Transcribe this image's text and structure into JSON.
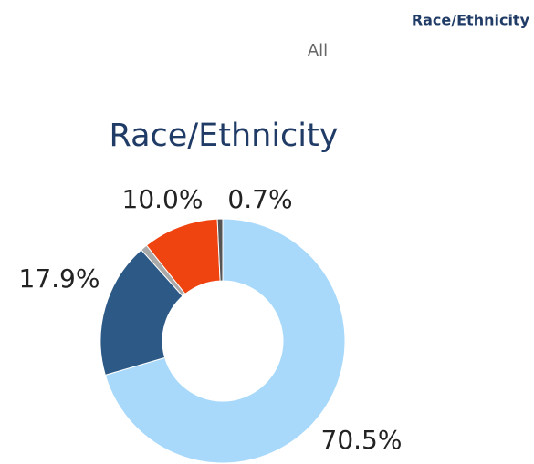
{
  "header": {
    "title": "Race/Ethnicity",
    "filter": "All"
  },
  "chart_data": {
    "type": "donut",
    "title": "Race/Ethnicity",
    "values": [
      70.5,
      17.9,
      0.9,
      10.0,
      0.7
    ],
    "value_labels": [
      "70.5%",
      "17.9%",
      null,
      "10.0%",
      "0.7%"
    ],
    "colors": [
      "#a8d9fb",
      "#2c5986",
      "#a9a9a9",
      "#f04410",
      "#555555"
    ]
  }
}
